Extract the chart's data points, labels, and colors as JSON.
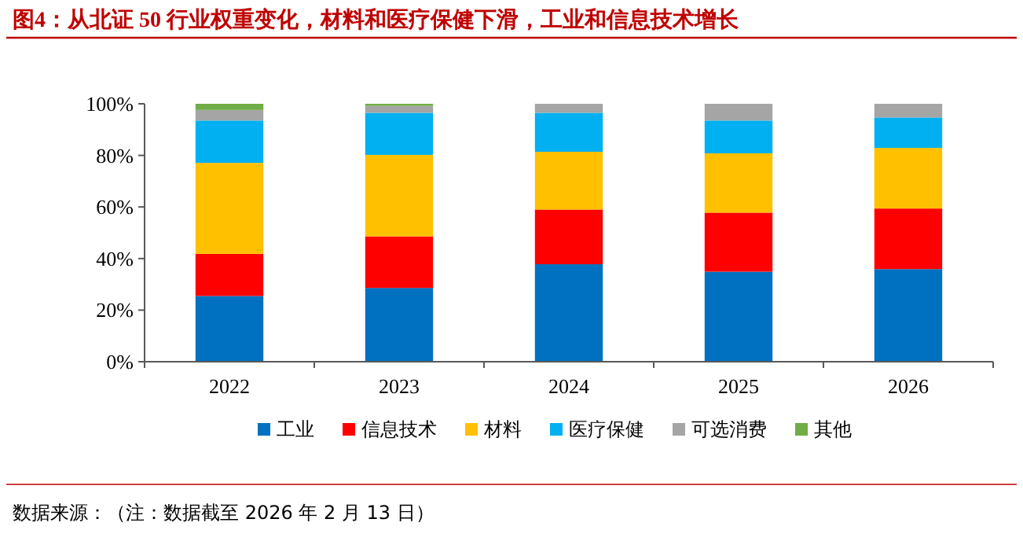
{
  "chart_data": {
    "type": "bar",
    "stacked": true,
    "title": "图4：从北证 50 行业权重变化，材料和医疗保健下滑，工业和信息技术增长",
    "categories": [
      "2022",
      "2023",
      "2024",
      "2025",
      "2026"
    ],
    "series": [
      {
        "name": "工业",
        "color": "#0070c0",
        "values": [
          25.5,
          28.6,
          37.8,
          34.9,
          35.9
        ]
      },
      {
        "name": "信息技术",
        "color": "#ff0000",
        "values": [
          16.3,
          20.0,
          21.2,
          22.9,
          23.5
        ]
      },
      {
        "name": "材料",
        "color": "#ffc000",
        "values": [
          35.3,
          31.6,
          22.4,
          23.0,
          23.5
        ]
      },
      {
        "name": "医疗保健",
        "color": "#00b0f0",
        "values": [
          16.4,
          16.3,
          15.1,
          12.7,
          11.8
        ]
      },
      {
        "name": "可选消费",
        "color": "#a5a5a5",
        "values": [
          4.1,
          2.7,
          3.5,
          6.5,
          5.3
        ]
      },
      {
        "name": "其他",
        "color": "#70ad47",
        "values": [
          2.4,
          0.8,
          0,
          0,
          0
        ]
      }
    ],
    "ylim": [
      0,
      100
    ],
    "yticks": [
      {
        "value": 0,
        "label": "0%"
      },
      {
        "value": 20,
        "label": "20%"
      },
      {
        "value": 40,
        "label": "40%"
      },
      {
        "value": 60,
        "label": "60%"
      },
      {
        "value": 80,
        "label": "80%"
      },
      {
        "value": 100,
        "label": "100%"
      }
    ],
    "grid": false,
    "legend": "bottom",
    "annotations": [
      "数据来源：（注：数据截至 2026 年 2 月 13 日）"
    ]
  }
}
